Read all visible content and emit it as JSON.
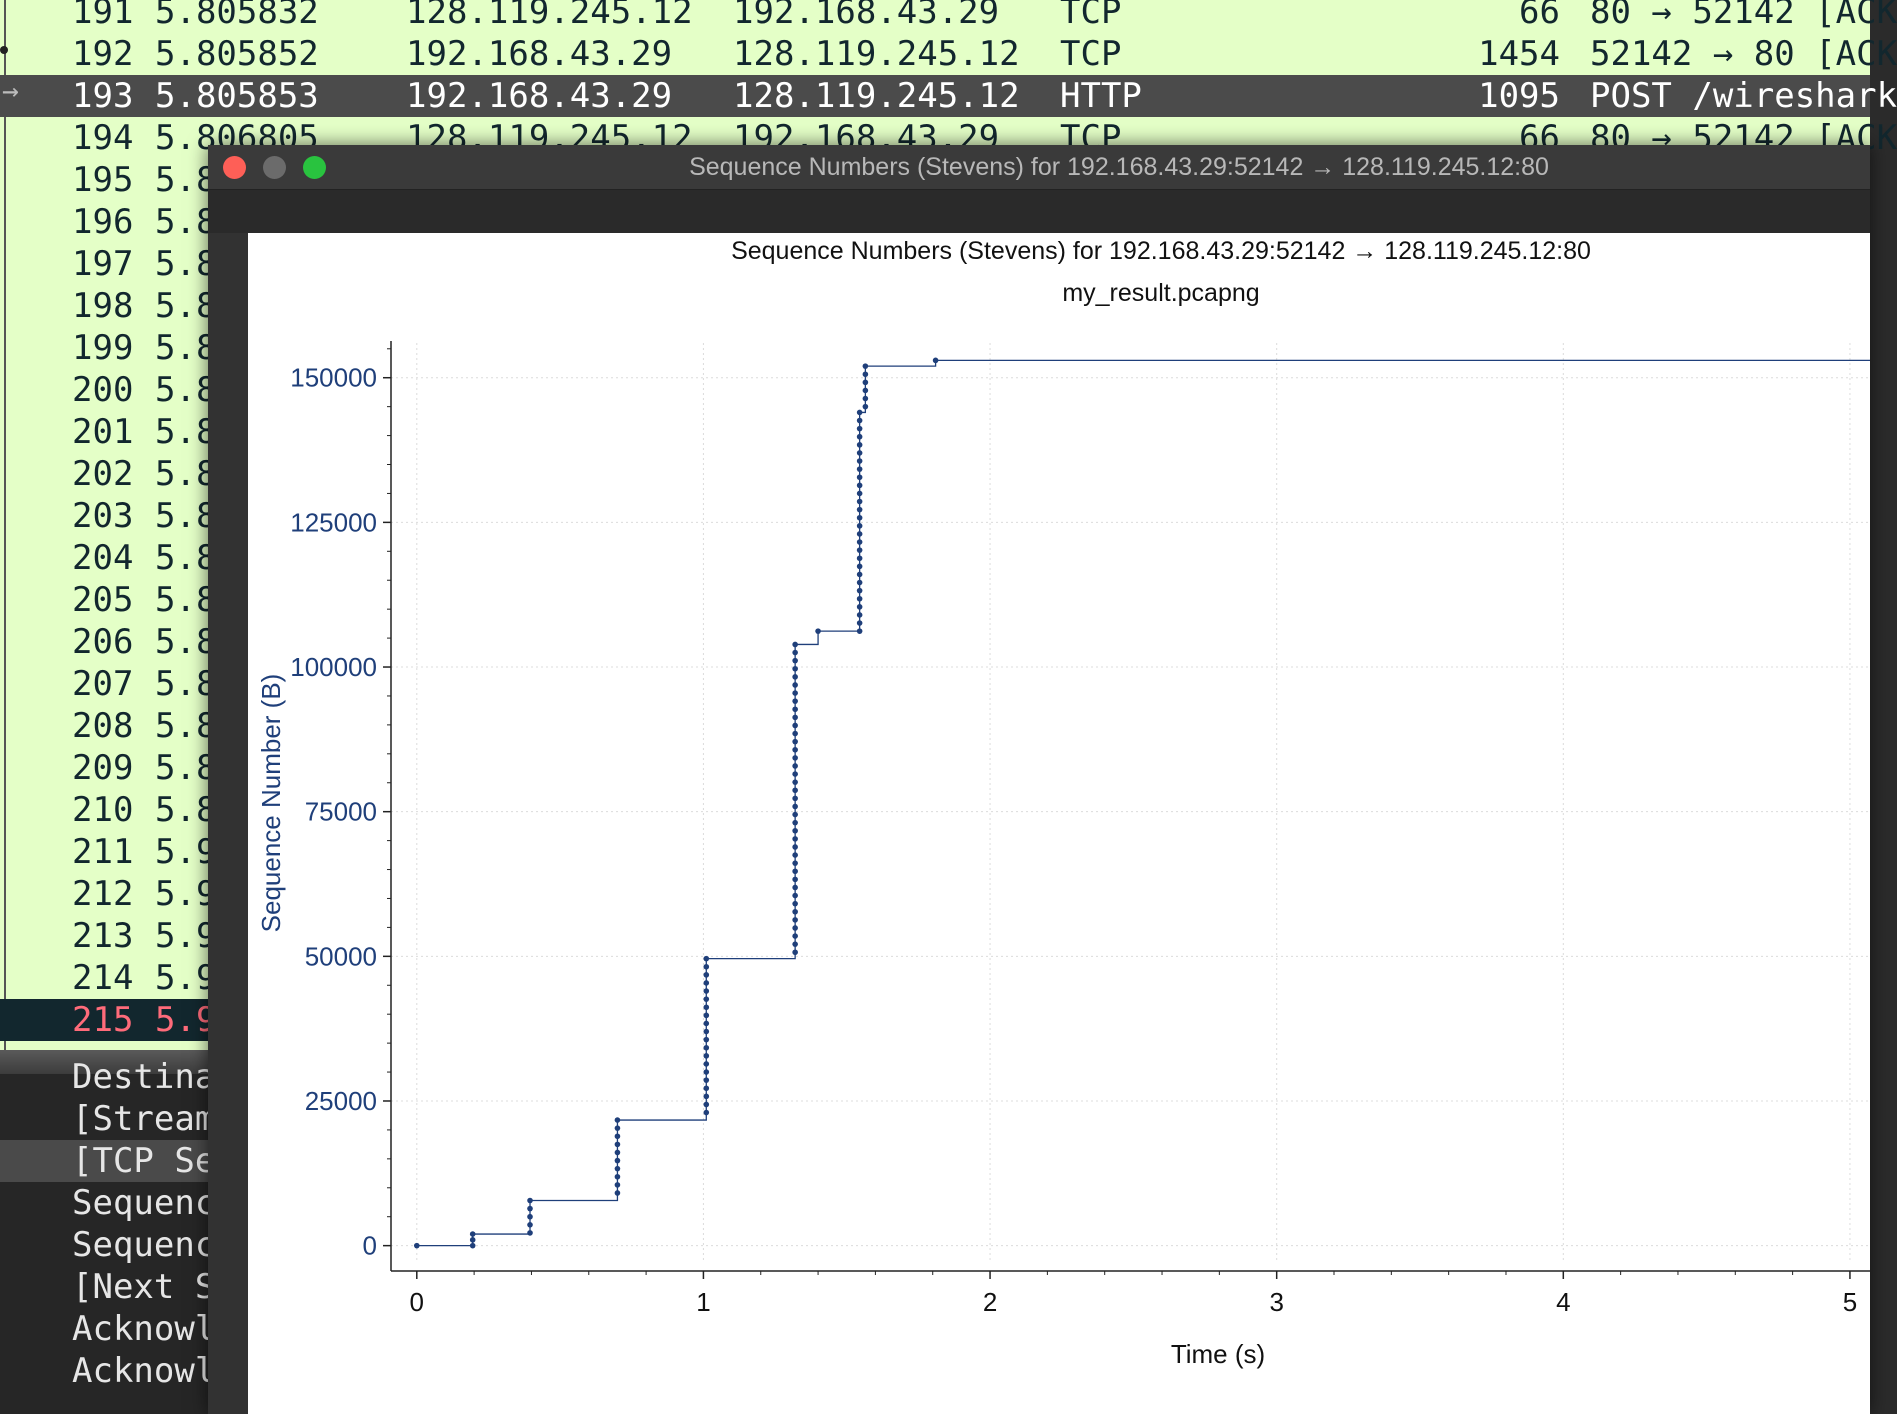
{
  "packet_list": {
    "rows": [
      {
        "no": "191",
        "time": "5.805832",
        "src": "128.119.245.12",
        "dst": "192.168.43.29",
        "proto": "TCP",
        "len": "66",
        "info": "80 → 52142 [ACK"
      },
      {
        "no": "192",
        "time": "5.805852",
        "src": "192.168.43.29",
        "dst": "128.119.245.12",
        "proto": "TCP",
        "len": "1454",
        "info": "52142 → 80 [ACK"
      },
      {
        "no": "193",
        "time": "5.805853",
        "src": "192.168.43.29",
        "dst": "128.119.245.12",
        "proto": "HTTP",
        "len": "1095",
        "info": "POST /wireshark"
      },
      {
        "no": "194",
        "time": "5.806805",
        "src": "128.119.245.12",
        "dst": "192.168.43.29",
        "proto": "TCP",
        "len": "66",
        "info": "80 → 52142 [ACK"
      },
      {
        "no": "195",
        "time": "5.8"
      },
      {
        "no": "196",
        "time": "5.8"
      },
      {
        "no": "197",
        "time": "5.8"
      },
      {
        "no": "198",
        "time": "5.8"
      },
      {
        "no": "199",
        "time": "5.8"
      },
      {
        "no": "200",
        "time": "5.8"
      },
      {
        "no": "201",
        "time": "5.8"
      },
      {
        "no": "202",
        "time": "5.8"
      },
      {
        "no": "203",
        "time": "5.8"
      },
      {
        "no": "204",
        "time": "5.8"
      },
      {
        "no": "205",
        "time": "5.8"
      },
      {
        "no": "206",
        "time": "5.8"
      },
      {
        "no": "207",
        "time": "5.8"
      },
      {
        "no": "208",
        "time": "5.8"
      },
      {
        "no": "209",
        "time": "5.8"
      },
      {
        "no": "210",
        "time": "5.8"
      },
      {
        "no": "211",
        "time": "5.9"
      },
      {
        "no": "212",
        "time": "5.9"
      },
      {
        "no": "213",
        "time": "5.9"
      },
      {
        "no": "214",
        "time": "5.9"
      },
      {
        "no": "215",
        "time": "5.9"
      }
    ]
  },
  "details": {
    "rows": [
      "Destina",
      "[Stream",
      "[TCP Se",
      "Sequenc",
      "Sequenc",
      "[Next S",
      "Acknowl",
      "Acknowl"
    ]
  },
  "graph_window": {
    "title": "Sequence Numbers (Stevens) for 192.168.43.29:52142 → 128.119.245.12:80",
    "colors": {
      "close": "#fe5f57",
      "minimize": "#6b6b6b",
      "maximize": "#29c33f",
      "series": "#1f3f7a"
    }
  },
  "chart_data": {
    "type": "scatter",
    "title": "Sequence Numbers (Stevens) for 192.168.43.29:52142 → 128.119.245.12:80",
    "subtitle": "my_result.pcapng",
    "xlabel": "Time (s)",
    "ylabel": "Sequence Number (B)",
    "xlim": [
      -0.09,
      5.07
    ],
    "ylim": [
      -3000,
      156000
    ],
    "x_ticks": [
      "0",
      "1",
      "2",
      "3",
      "4",
      "5"
    ],
    "y_ticks": [
      "0",
      "25000",
      "50000",
      "75000",
      "100000",
      "125000",
      "150000"
    ],
    "grid": true,
    "step_line": true,
    "series": [
      {
        "bursts": [
          {
            "x": 0.0,
            "y_start": 0,
            "y_end": 0,
            "step": 1
          },
          {
            "x": 0.195,
            "y_start": 0,
            "y_end": 2000,
            "step": 1000
          },
          {
            "x": 0.395,
            "y_start": 2200,
            "y_end": 9000,
            "step": 1400
          },
          {
            "x": 0.7,
            "y_start": 9100,
            "y_end": 23000,
            "step": 1400
          },
          {
            "x": 1.01,
            "y_start": 23000,
            "y_end": 50700,
            "step": 1400
          },
          {
            "x": 1.32,
            "y_start": 50700,
            "y_end": 104800,
            "step": 1400
          },
          {
            "x": 1.4,
            "y_start": 106200,
            "y_end": 106200,
            "step": 1
          },
          {
            "x": 1.545,
            "y_start": 106200,
            "y_end": 145000,
            "step": 1400
          },
          {
            "x": 1.565,
            "y_start": 145000,
            "y_end": 152000,
            "step": 1400
          },
          {
            "x": 1.81,
            "y_start": 153000,
            "y_end": 153000,
            "step": 1
          }
        ],
        "final_x": 5.07,
        "final_y": 153000
      }
    ]
  }
}
